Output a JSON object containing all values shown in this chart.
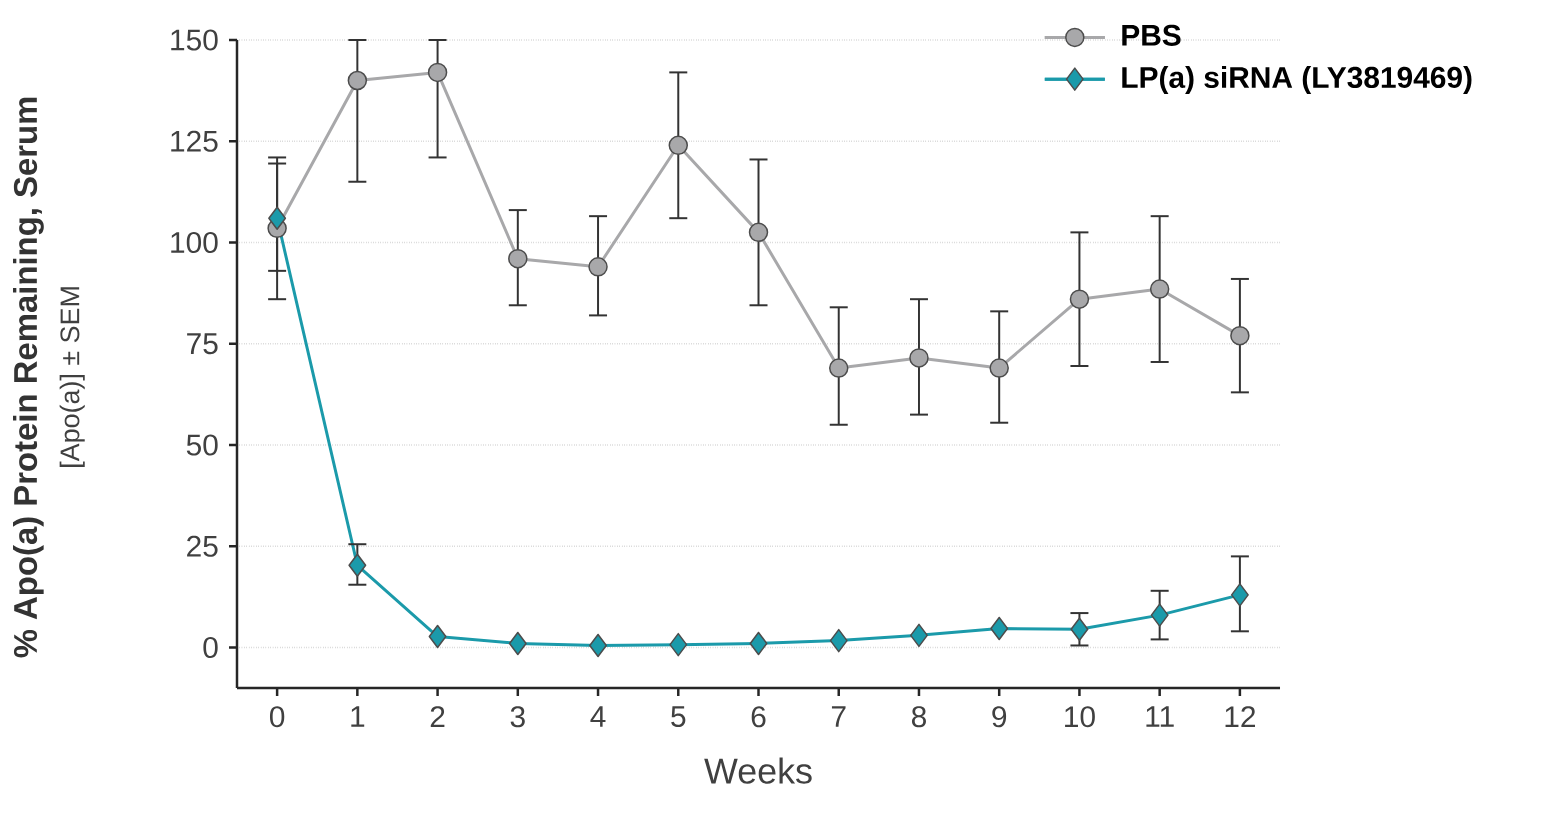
{
  "chart_data": {
    "type": "line",
    "xlabel": "Weeks",
    "ylabel": "% Apo(a) Protein Remaining, Serum",
    "annotations": [
      "[Apo(a)] ± SEM"
    ],
    "x": [
      0,
      1,
      2,
      3,
      4,
      5,
      6,
      7,
      8,
      9,
      10,
      11,
      12
    ],
    "xlim": [
      -0.5,
      12.5
    ],
    "xticks": [
      0,
      1,
      2,
      3,
      4,
      5,
      6,
      7,
      8,
      9,
      10,
      11,
      12
    ],
    "ylim": [
      -10,
      150
    ],
    "yticks": [
      0,
      25,
      50,
      75,
      100,
      125,
      150
    ],
    "grid": "y",
    "legend": "top right",
    "line_style": "solid",
    "series": [
      {
        "name": "PBS",
        "color": "#a8a8aa",
        "marker": "circle",
        "values": [
          103.5,
          140,
          142,
          96,
          94,
          124,
          102.5,
          69,
          71.5,
          69,
          86,
          88.5,
          77
        ],
        "errors": [
          [
            86,
            121
          ],
          [
            115,
            150
          ],
          [
            121,
            150
          ],
          [
            84.5,
            108
          ],
          [
            82,
            106.5
          ],
          [
            106,
            142
          ],
          [
            84.5,
            120.5
          ],
          [
            55,
            84
          ],
          [
            57.5,
            86
          ],
          [
            55.5,
            83
          ],
          [
            69.5,
            102.5
          ],
          [
            70.5,
            106.5
          ],
          [
            63,
            91
          ]
        ]
      },
      {
        "name": "LP(a) siRNA (LY3819469)",
        "color": "#1b9aaa",
        "marker": "diamond",
        "values": [
          106,
          20.3,
          2.7,
          1,
          0.5,
          0.7,
          1,
          1.7,
          3,
          4.7,
          4.5,
          8,
          13
        ],
        "errors": [
          [
            93,
            119.5
          ],
          [
            15.5,
            25.5
          ],
          null,
          null,
          null,
          null,
          null,
          null,
          null,
          null,
          [
            0.5,
            8.5
          ],
          [
            2,
            14
          ],
          [
            4,
            22.5
          ]
        ]
      }
    ]
  }
}
